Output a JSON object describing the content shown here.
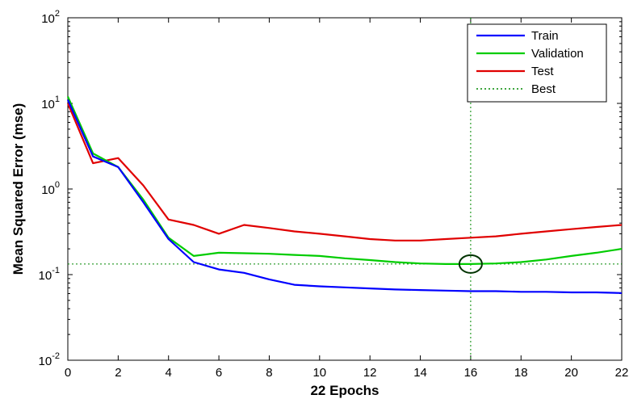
{
  "chart_data": {
    "type": "line",
    "title": "",
    "xlabel": "22 Epochs",
    "ylabel": "Mean Squared Error  (mse)",
    "xlim": [
      0,
      22
    ],
    "ylim": [
      0.01,
      100
    ],
    "yscale": "log",
    "grid": false,
    "legend_position": "top-right",
    "xticks": [
      "0",
      "2",
      "4",
      "6",
      "8",
      "10",
      "12",
      "14",
      "16",
      "18",
      "20",
      "22"
    ],
    "yticks": [
      {
        "value": 0.01,
        "base": "10",
        "exp": "-2"
      },
      {
        "value": 0.1,
        "base": "10",
        "exp": "-1"
      },
      {
        "value": 1,
        "base": "10",
        "exp": "0"
      },
      {
        "value": 10,
        "base": "10",
        "exp": "1"
      },
      {
        "value": 100,
        "base": "10",
        "exp": "2"
      }
    ],
    "series": [
      {
        "name": "Train",
        "color": "#0000ff",
        "x": [
          0,
          1,
          2,
          3,
          4,
          5,
          6,
          7,
          8,
          9,
          10,
          11,
          12,
          13,
          14,
          15,
          16,
          17,
          18,
          19,
          20,
          21,
          22
        ],
        "y": [
          11,
          2.4,
          1.8,
          0.7,
          0.26,
          0.14,
          0.115,
          0.105,
          0.088,
          0.076,
          0.073,
          0.071,
          0.069,
          0.067,
          0.066,
          0.065,
          0.064,
          0.064,
          0.063,
          0.063,
          0.062,
          0.062,
          0.061
        ]
      },
      {
        "name": "Validation",
        "color": "#00cc00",
        "x": [
          0,
          1,
          2,
          3,
          4,
          5,
          6,
          7,
          8,
          9,
          10,
          11,
          12,
          13,
          14,
          15,
          16,
          17,
          18,
          19,
          20,
          21,
          22
        ],
        "y": [
          12,
          2.6,
          1.8,
          0.75,
          0.27,
          0.165,
          0.18,
          0.178,
          0.175,
          0.17,
          0.165,
          0.155,
          0.148,
          0.14,
          0.135,
          0.133,
          0.133,
          0.135,
          0.14,
          0.15,
          0.165,
          0.18,
          0.2
        ]
      },
      {
        "name": "Test",
        "color": "#e00000",
        "x": [
          0,
          1,
          2,
          3,
          4,
          5,
          6,
          7,
          8,
          9,
          10,
          11,
          12,
          13,
          14,
          15,
          16,
          17,
          18,
          19,
          20,
          21,
          22
        ],
        "y": [
          10,
          2.0,
          2.3,
          1.1,
          0.44,
          0.38,
          0.3,
          0.38,
          0.35,
          0.32,
          0.3,
          0.28,
          0.26,
          0.25,
          0.25,
          0.26,
          0.27,
          0.28,
          0.3,
          0.32,
          0.34,
          0.36,
          0.38
        ]
      }
    ],
    "best": {
      "name": "Best",
      "epoch": 16,
      "value": 0.133,
      "color": "#008800"
    }
  }
}
